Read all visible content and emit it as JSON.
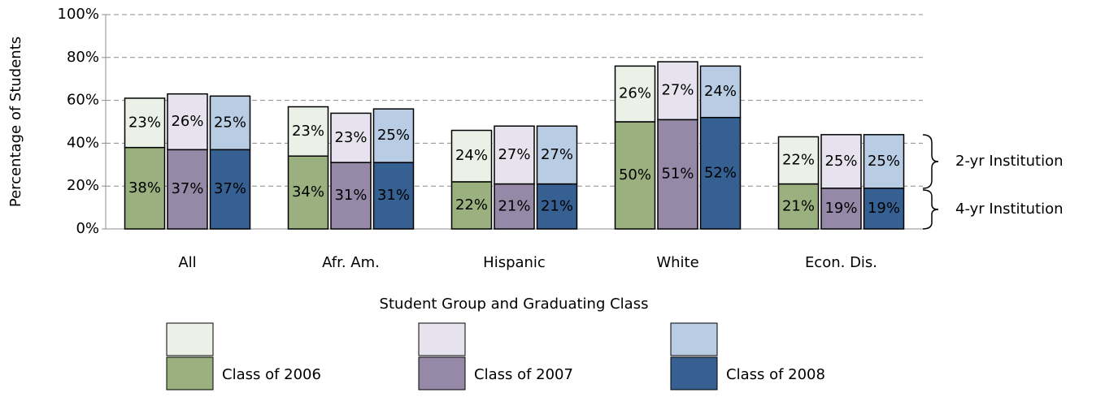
{
  "chart_data": {
    "type": "grouped-stacked-bar",
    "y_label": "Percentage of Students",
    "x_label": "Student Group and Graduating Class",
    "categories": [
      "All",
      "Afr. Am.",
      "Hispanic",
      "White",
      "Econ. Dis."
    ],
    "stack_names": [
      "4-yr Institution",
      "2-yr Institution"
    ],
    "ylim": [
      0,
      100
    ],
    "yticks": [
      {
        "value": 0,
        "label": "0%"
      },
      {
        "value": 20,
        "label": "20%"
      },
      {
        "value": 40,
        "label": "40%"
      },
      {
        "value": 60,
        "label": "60%"
      },
      {
        "value": 80,
        "label": "80%"
      },
      {
        "value": 100,
        "label": "100%"
      }
    ],
    "grid": true,
    "series": [
      {
        "name": "Class of 2006",
        "stacks": [
          {
            "color": "#9bb07f",
            "values": [
              38,
              34,
              22,
              50,
              21
            ],
            "value_labels": [
              "38%",
              "34%",
              "22%",
              "50%",
              "21%"
            ]
          },
          {
            "color": "#ebf1e6",
            "values": [
              23,
              23,
              24,
              26,
              22
            ],
            "value_labels": [
              "23%",
              "23%",
              "24%",
              "26%",
              "22%"
            ]
          }
        ]
      },
      {
        "name": "Class of 2007",
        "stacks": [
          {
            "color": "#9688a7",
            "values": [
              37,
              31,
              21,
              51,
              19
            ],
            "value_labels": [
              "37%",
              "31%",
              "21%",
              "51%",
              "19%"
            ]
          },
          {
            "color": "#e7e3ee",
            "values": [
              26,
              23,
              27,
              27,
              25
            ],
            "value_labels": [
              "26%",
              "23%",
              "27%",
              "27%",
              "25%"
            ]
          }
        ]
      },
      {
        "name": "Class of 2008",
        "stacks": [
          {
            "color": "#366092",
            "values": [
              37,
              31,
              21,
              52,
              19
            ],
            "value_labels": [
              "37%",
              "31%",
              "21%",
              "52%",
              "19%"
            ]
          },
          {
            "color": "#b8cce4",
            "values": [
              25,
              25,
              27,
              24,
              25
            ],
            "value_labels": [
              "25%",
              "25%",
              "27%",
              "24%",
              "25%"
            ]
          }
        ]
      }
    ]
  }
}
